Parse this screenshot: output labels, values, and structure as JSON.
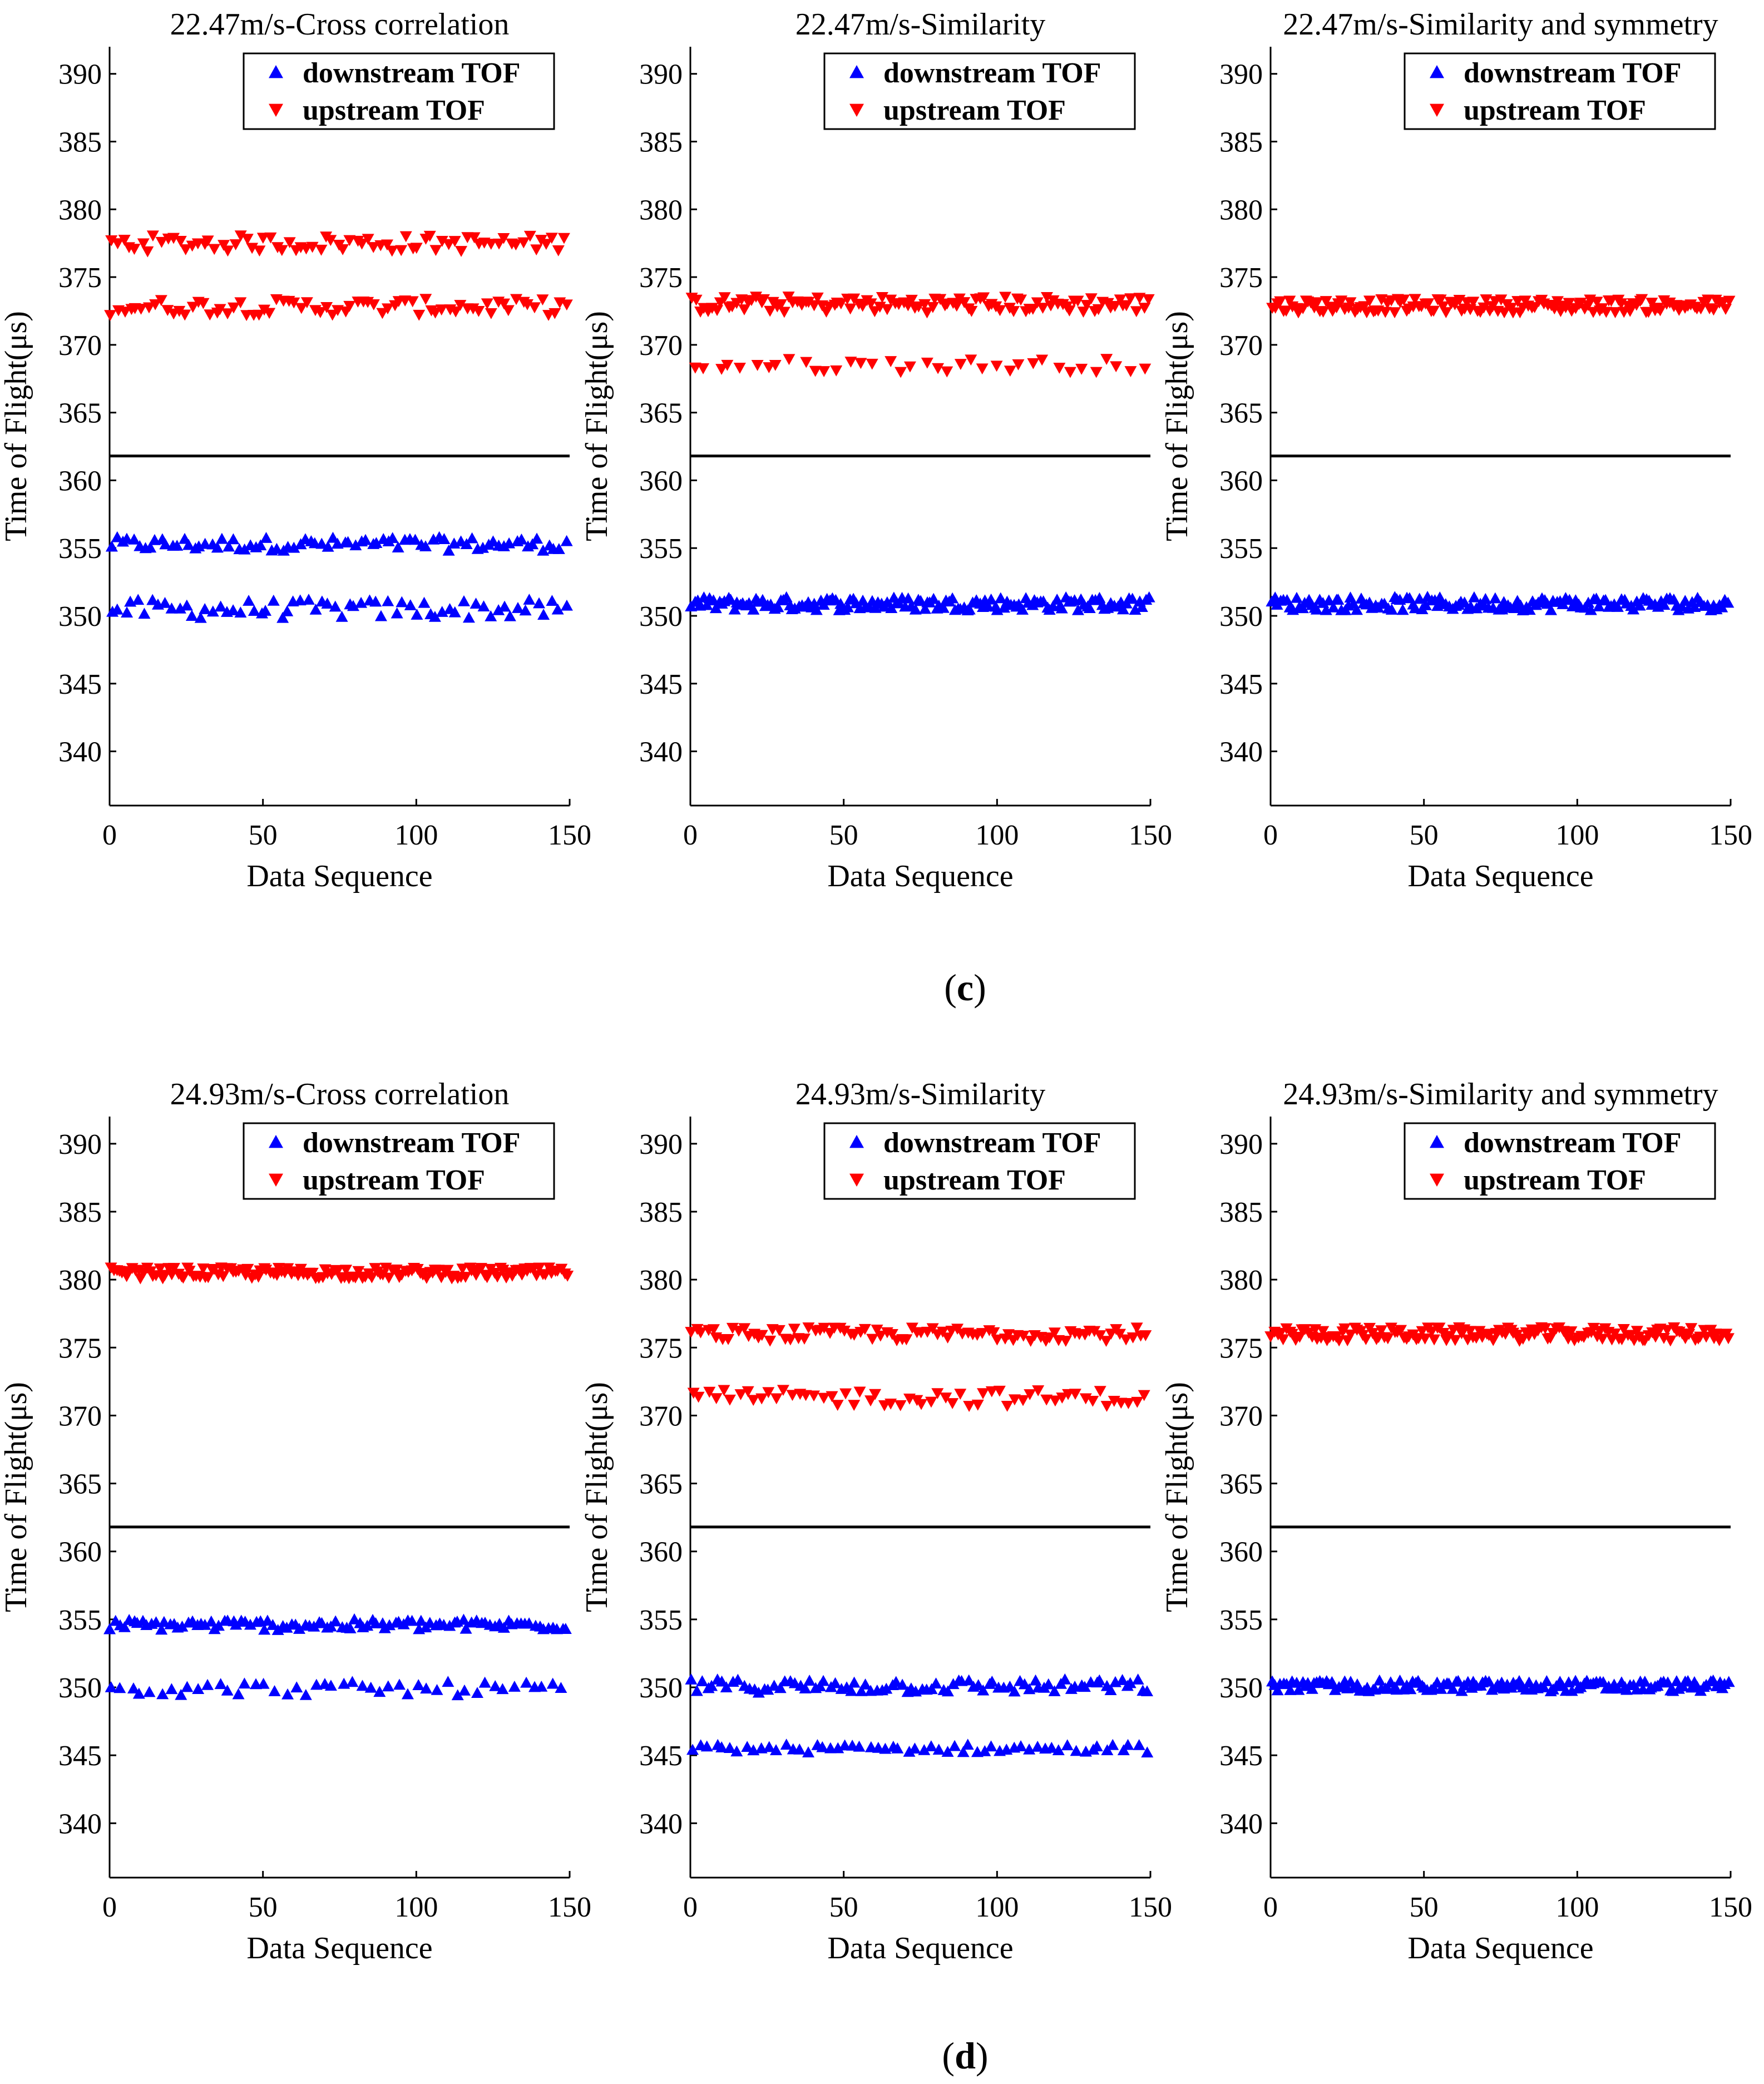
{
  "panels": [
    {
      "label": "c",
      "caption_open": "(",
      "caption_close": ")"
    },
    {
      "label": "d",
      "caption_open": "(",
      "caption_close": ")"
    }
  ],
  "colors": {
    "downstream": "#0000ff",
    "upstream": "#ff0000",
    "axis": "#000000",
    "divider": "#000000"
  },
  "legend_labels": [
    "downstream TOF",
    "upstream TOF"
  ],
  "chart_data": [
    {
      "id": "c1",
      "panel": "c",
      "type": "scatter",
      "title": "22.47m/s-Cross correlation",
      "xlabel": "Data Sequence",
      "ylabel": "Time of Flight(μs)",
      "xlim": [
        0,
        150
      ],
      "ylim": [
        336,
        392
      ],
      "xticks": [
        0,
        50,
        100,
        150
      ],
      "yticks": [
        340,
        345,
        350,
        355,
        360,
        365,
        370,
        375,
        380,
        385,
        390
      ],
      "divider_y": 361.8,
      "legend": "top-right",
      "grid": false,
      "series": [
        {
          "name": "downstream TOF",
          "marker": "triangle-up",
          "color": "#0000ff",
          "bands": [
            {
              "center": 355.3,
              "spread": 0.5,
              "fraction": 0.55
            },
            {
              "center": 350.5,
              "spread": 0.7,
              "fraction": 0.45
            }
          ]
        },
        {
          "name": "upstream TOF",
          "marker": "triangle-down",
          "color": "#ff0000",
          "bands": [
            {
              "center": 377.5,
              "spread": 0.6,
              "fraction": 0.5
            },
            {
              "center": 372.8,
              "spread": 0.6,
              "fraction": 0.5
            }
          ]
        }
      ]
    },
    {
      "id": "c2",
      "panel": "c",
      "type": "scatter",
      "title": "22.47m/s-Similarity",
      "xlabel": "Data Sequence",
      "ylabel": "Time of Flight(μs)",
      "xlim": [
        0,
        150
      ],
      "ylim": [
        336,
        392
      ],
      "xticks": [
        0,
        50,
        100,
        150
      ],
      "yticks": [
        340,
        345,
        350,
        355,
        360,
        365,
        370,
        375,
        380,
        385,
        390
      ],
      "divider_y": 361.8,
      "legend": "top-right",
      "grid": false,
      "series": [
        {
          "name": "downstream TOF",
          "marker": "triangle-up",
          "color": "#0000ff",
          "bands": [
            {
              "center": 350.9,
              "spread": 0.5,
              "fraction": 1.0
            }
          ]
        },
        {
          "name": "upstream TOF",
          "marker": "triangle-down",
          "color": "#ff0000",
          "bands": [
            {
              "center": 373.0,
              "spread": 0.6,
              "fraction": 0.75
            },
            {
              "center": 368.5,
              "spread": 0.5,
              "fraction": 0.25
            }
          ]
        }
      ]
    },
    {
      "id": "c3",
      "panel": "c",
      "type": "scatter",
      "title": "22.47m/s-Similarity and symmetry",
      "xlabel": "Data Sequence",
      "ylabel": "Time of Flight(μs)",
      "xlim": [
        0,
        150
      ],
      "ylim": [
        336,
        392
      ],
      "xticks": [
        0,
        50,
        100,
        150
      ],
      "yticks": [
        340,
        345,
        350,
        355,
        360,
        365,
        370,
        375,
        380,
        385,
        390
      ],
      "divider_y": 361.8,
      "legend": "top-right",
      "grid": false,
      "series": [
        {
          "name": "downstream TOF",
          "marker": "triangle-up",
          "color": "#0000ff",
          "bands": [
            {
              "center": 350.9,
              "spread": 0.5,
              "fraction": 1.0
            }
          ]
        },
        {
          "name": "upstream TOF",
          "marker": "triangle-down",
          "color": "#ff0000",
          "bands": [
            {
              "center": 372.9,
              "spread": 0.5,
              "fraction": 1.0
            }
          ]
        }
      ]
    },
    {
      "id": "d1",
      "panel": "d",
      "type": "scatter",
      "title": "24.93m/s-Cross correlation",
      "xlabel": "Data Sequence",
      "ylabel": "Time of Flight(μs)",
      "xlim": [
        0,
        150
      ],
      "ylim": [
        336,
        392
      ],
      "xticks": [
        0,
        50,
        100,
        150
      ],
      "yticks": [
        340,
        345,
        350,
        355,
        360,
        365,
        370,
        375,
        380,
        385,
        390
      ],
      "divider_y": 361.8,
      "legend": "top-right",
      "grid": false,
      "series": [
        {
          "name": "downstream TOF",
          "marker": "triangle-up",
          "color": "#0000ff",
          "bands": [
            {
              "center": 354.6,
              "spread": 0.4,
              "fraction": 0.68
            },
            {
              "center": 349.9,
              "spread": 0.5,
              "fraction": 0.32
            }
          ]
        },
        {
          "name": "upstream TOF",
          "marker": "triangle-down",
          "color": "#ff0000",
          "bands": [
            {
              "center": 380.5,
              "spread": 0.4,
              "fraction": 1.0
            }
          ]
        }
      ]
    },
    {
      "id": "d2",
      "panel": "d",
      "type": "scatter",
      "title": "24.93m/s-Similarity",
      "xlabel": "Data Sequence",
      "ylabel": "Time of Flight(μs)",
      "xlim": [
        0,
        150
      ],
      "ylim": [
        336,
        392
      ],
      "xticks": [
        0,
        50,
        100,
        150
      ],
      "yticks": [
        340,
        345,
        350,
        355,
        360,
        365,
        370,
        375,
        380,
        385,
        390
      ],
      "divider_y": 361.8,
      "legend": "top-right",
      "grid": false,
      "series": [
        {
          "name": "downstream TOF",
          "marker": "triangle-up",
          "color": "#0000ff",
          "bands": [
            {
              "center": 350.1,
              "spread": 0.5,
              "fraction": 0.6
            },
            {
              "center": 345.5,
              "spread": 0.3,
              "fraction": 0.4
            }
          ]
        },
        {
          "name": "upstream TOF",
          "marker": "triangle-down",
          "color": "#ff0000",
          "bands": [
            {
              "center": 376.0,
              "spread": 0.5,
              "fraction": 0.6
            },
            {
              "center": 371.3,
              "spread": 0.6,
              "fraction": 0.4
            }
          ]
        }
      ]
    },
    {
      "id": "d3",
      "panel": "d",
      "type": "scatter",
      "title": "24.93m/s-Similarity and symmetry",
      "xlabel": "Data Sequence",
      "ylabel": "Time of Flight(μs)",
      "xlim": [
        0,
        150
      ],
      "ylim": [
        336,
        392
      ],
      "xticks": [
        0,
        50,
        100,
        150
      ],
      "yticks": [
        340,
        345,
        350,
        355,
        360,
        365,
        370,
        375,
        380,
        385,
        390
      ],
      "divider_y": 361.8,
      "legend": "top-right",
      "grid": false,
      "series": [
        {
          "name": "downstream TOF",
          "marker": "triangle-up",
          "color": "#0000ff",
          "bands": [
            {
              "center": 350.1,
              "spread": 0.4,
              "fraction": 1.0
            }
          ]
        },
        {
          "name": "upstream TOF",
          "marker": "triangle-down",
          "color": "#ff0000",
          "bands": [
            {
              "center": 376.0,
              "spread": 0.5,
              "fraction": 1.0
            }
          ]
        }
      ]
    }
  ]
}
